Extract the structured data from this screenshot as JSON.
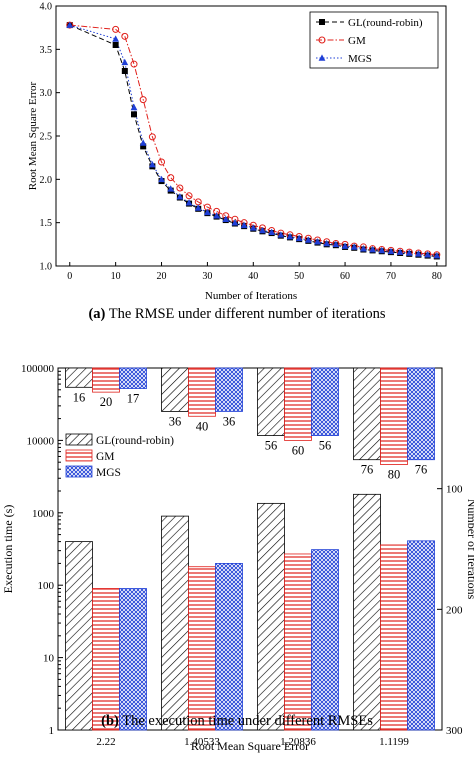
{
  "charts": [
    {
      "caption": {
        "tag": "(a)",
        "text": "The RMSE under different number of iterations"
      },
      "chart_data": {
        "type": "line",
        "xlabel": "Number of Iterations",
        "ylabel": "Root Mean Square Error",
        "xlim": [
          -3,
          82
        ],
        "ylim": [
          1.0,
          4.0
        ],
        "xticks": [
          "0",
          "10",
          "20",
          "30",
          "40",
          "50",
          "60",
          "70",
          "80"
        ],
        "yticks": [
          "1.0",
          "1.5",
          "2.0",
          "2.5",
          "3.0",
          "3.5",
          "4.0"
        ],
        "grid": false,
        "legend_position": "top-right",
        "series": [
          {
            "name": "GL(round-robin)",
            "marker": "square",
            "color": "#000000",
            "dash": "dashed",
            "x": [
              0,
              10,
              12,
              14,
              16,
              18,
              20,
              22,
              24,
              26,
              28,
              30,
              32,
              34,
              36,
              38,
              40,
              42,
              44,
              46,
              48,
              50,
              52,
              54,
              56,
              58,
              60,
              62,
              64,
              66,
              68,
              70,
              72,
              74,
              76,
              78,
              80
            ],
            "y": [
              3.78,
              3.55,
              3.25,
              2.75,
              2.38,
              2.15,
              1.98,
              1.87,
              1.79,
              1.72,
              1.66,
              1.61,
              1.57,
              1.53,
              1.49,
              1.46,
              1.43,
              1.4,
              1.38,
              1.35,
              1.33,
              1.31,
              1.29,
              1.27,
              1.25,
              1.24,
              1.22,
              1.21,
              1.19,
              1.18,
              1.17,
              1.16,
              1.15,
              1.14,
              1.13,
              1.12,
              1.11
            ]
          },
          {
            "name": "GM",
            "marker": "circle",
            "color": "#e0201b",
            "dash": "dashdot",
            "x": [
              0,
              10,
              12,
              14,
              16,
              18,
              20,
              22,
              24,
              26,
              28,
              30,
              32,
              34,
              36,
              38,
              40,
              42,
              44,
              46,
              48,
              50,
              52,
              54,
              56,
              58,
              60,
              62,
              64,
              66,
              68,
              70,
              72,
              74,
              76,
              78,
              80
            ],
            "y": [
              3.78,
              3.73,
              3.65,
              3.33,
              2.92,
              2.49,
              2.2,
              2.02,
              1.9,
              1.81,
              1.74,
              1.68,
              1.63,
              1.58,
              1.54,
              1.5,
              1.47,
              1.44,
              1.41,
              1.38,
              1.36,
              1.34,
              1.32,
              1.3,
              1.28,
              1.26,
              1.25,
              1.23,
              1.22,
              1.2,
              1.19,
              1.18,
              1.17,
              1.16,
              1.15,
              1.14,
              1.13
            ]
          },
          {
            "name": "MGS",
            "marker": "triangle",
            "color": "#1f3fd6",
            "dash": "dotted",
            "x": [
              0,
              10,
              12,
              14,
              16,
              18,
              20,
              22,
              24,
              26,
              28,
              30,
              32,
              34,
              36,
              38,
              40,
              42,
              44,
              46,
              48,
              50,
              52,
              54,
              56,
              58,
              60,
              62,
              64,
              66,
              68,
              70,
              72,
              74,
              76,
              78,
              80
            ],
            "y": [
              3.78,
              3.62,
              3.35,
              2.83,
              2.42,
              2.17,
              2.0,
              1.89,
              1.8,
              1.73,
              1.67,
              1.62,
              1.58,
              1.54,
              1.5,
              1.47,
              1.44,
              1.41,
              1.39,
              1.36,
              1.34,
              1.32,
              1.3,
              1.28,
              1.26,
              1.25,
              1.23,
              1.22,
              1.2,
              1.19,
              1.18,
              1.17,
              1.16,
              1.15,
              1.14,
              1.13,
              1.12
            ]
          }
        ]
      }
    },
    {
      "caption": {
        "tag": "(b)",
        "text": "The execution time under different RMSEs"
      },
      "chart_data": {
        "type": "bar",
        "xlabel": "Root Mean Square Error",
        "ylabel": "Execution time (s)",
        "y2label": "Number of Iterations",
        "categories": [
          "2.22",
          "1.40533",
          "1.20836",
          "1.1199"
        ],
        "yscale": "log",
        "ylim": [
          1,
          100000
        ],
        "yticks": [
          "1",
          "10",
          "100",
          "1000",
          "10000",
          "100000"
        ],
        "y2lim": [
          0,
          300
        ],
        "y2inverted": true,
        "y2ticks": [
          "100",
          "200",
          "300"
        ],
        "legend_position": "left",
        "series": [
          {
            "name": "GL(round-robin)",
            "pattern": "hatch",
            "color": "#000000",
            "time": [
              400,
              900,
              1350,
              1800
            ],
            "iterations": [
              16,
              36,
              56,
              76
            ]
          },
          {
            "name": "GM",
            "pattern": "horizontal-lines",
            "color": "#e0201b",
            "time": [
              90,
              180,
              270,
              360
            ],
            "iterations": [
              20,
              40,
              60,
              80
            ]
          },
          {
            "name": "MGS",
            "pattern": "cross",
            "color": "#1f3fd6",
            "time": [
              90,
              200,
              310,
              410
            ],
            "iterations": [
              17,
              36,
              56,
              76
            ]
          }
        ]
      }
    }
  ]
}
